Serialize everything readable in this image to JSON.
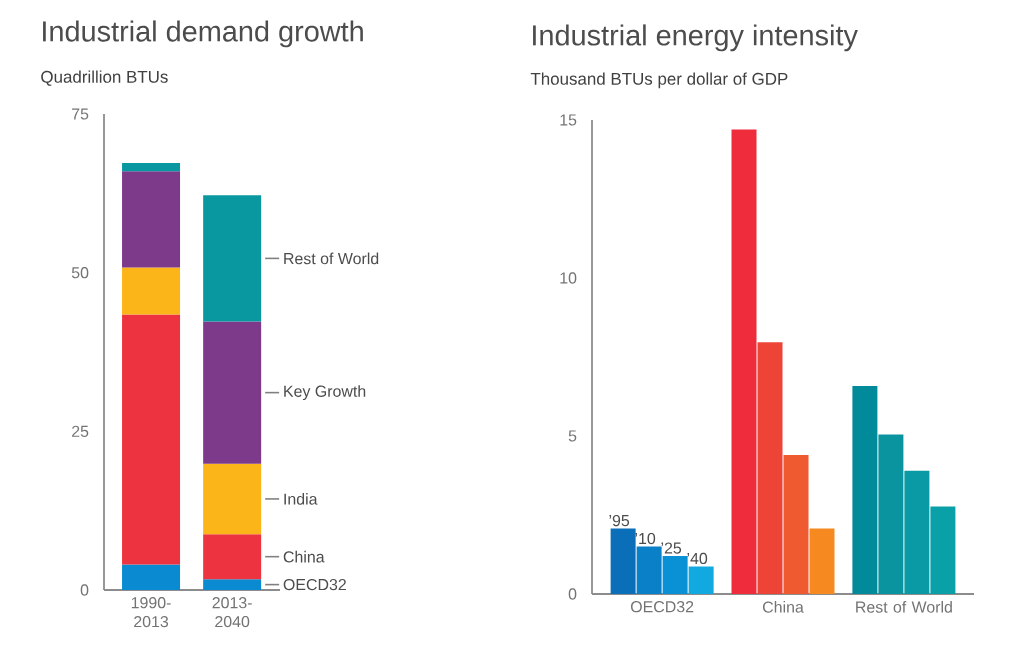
{
  "chart_data": [
    {
      "type": "bar",
      "stacked": true,
      "title": "Industrial demand growth",
      "subtitle": "Quadrillion BTUs",
      "categories": [
        "1990-2013",
        "2013-2040"
      ],
      "series": [
        {
          "name": "OECD32",
          "color": "#0a8ad0",
          "values": [
            4,
            1.7
          ]
        },
        {
          "name": "China",
          "color": "#ee3340",
          "values": [
            39.4,
            7.1
          ]
        },
        {
          "name": "India",
          "color": "#fbb518",
          "values": [
            7.4,
            11.1
          ]
        },
        {
          "name": "Key Growth",
          "color": "#7d3a8a",
          "values": [
            15.2,
            22.4
          ]
        },
        {
          "name": "Rest of World",
          "color": "#0a98a0",
          "values": [
            1.3,
            19.9
          ]
        }
      ],
      "ylim": [
        0,
        75
      ],
      "yticks": [
        0,
        25,
        50,
        75
      ]
    },
    {
      "type": "bar",
      "title": "Industrial energy intensity",
      "subtitle": "Thousand BTUs per dollar of GDP",
      "categories": [
        "OECD32",
        "China",
        "Rest of World"
      ],
      "series": [
        {
          "name": "’95",
          "colors": [
            "#0a6fb8",
            "#ee2c3c",
            "#008a9a"
          ],
          "values": [
            2.07,
            14.7,
            6.58
          ]
        },
        {
          "name": "’10",
          "colors": [
            "#0a80c8",
            "#ee4438",
            "#0a94a0"
          ],
          "values": [
            1.5,
            7.97,
            5.05
          ]
        },
        {
          "name": "’25",
          "colors": [
            "#0a90d5",
            "#f05a30",
            "#0a9aa5"
          ],
          "values": [
            1.2,
            4.4,
            3.9
          ]
        },
        {
          "name": "’40",
          "colors": [
            "#12a8e0",
            "#f68a20",
            "#0aa0a8"
          ],
          "values": [
            0.87,
            2.07,
            2.77
          ]
        }
      ],
      "ylim": [
        0,
        15
      ],
      "yticks": [
        0,
        5,
        10,
        15
      ]
    }
  ]
}
